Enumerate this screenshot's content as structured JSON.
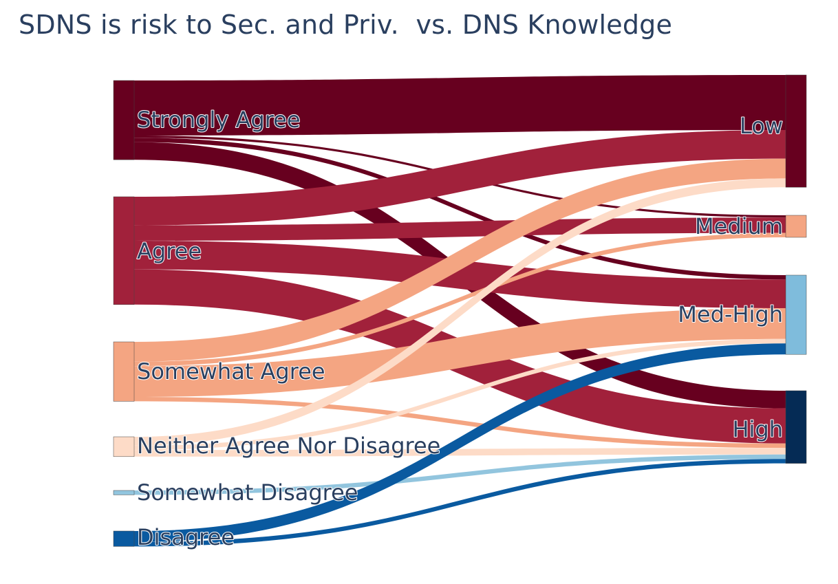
{
  "chart_data": {
    "type": "sankey",
    "title": "SDNS is risk to Sec. and Priv.  vs. DNS Knowledge",
    "sources": [
      {
        "id": "strongly_agree",
        "label": "Strongly Agree",
        "color": "#67001f"
      },
      {
        "id": "agree",
        "label": "Agree",
        "color": "#a1213b"
      },
      {
        "id": "somewhat_agree",
        "label": "Somewhat Agree",
        "color": "#f4a582"
      },
      {
        "id": "neither",
        "label": "Neither Agree Nor Disagree",
        "color": "#fddbc7"
      },
      {
        "id": "somewhat_disagree",
        "label": "Somewhat Disagree",
        "color": "#92c5de"
      },
      {
        "id": "disagree",
        "label": "Disagree",
        "color": "#0a5aa0"
      }
    ],
    "targets": [
      {
        "id": "low",
        "label": "Low",
        "color": "#67001f"
      },
      {
        "id": "medium",
        "label": "Medium",
        "color": "#f4a582"
      },
      {
        "id": "med_high",
        "label": "Med-High",
        "color": "#7fbcdc"
      },
      {
        "id": "high",
        "label": "High",
        "color": "#052b55"
      }
    ],
    "links": [
      {
        "source": "strongly_agree",
        "target": "low",
        "value": 25
      },
      {
        "source": "strongly_agree",
        "target": "medium",
        "value": 1
      },
      {
        "source": "strongly_agree",
        "target": "med_high",
        "value": 2
      },
      {
        "source": "strongly_agree",
        "target": "high",
        "value": 8
      },
      {
        "source": "agree",
        "target": "low",
        "value": 13
      },
      {
        "source": "agree",
        "target": "medium",
        "value": 7
      },
      {
        "source": "agree",
        "target": "med_high",
        "value": 13
      },
      {
        "source": "agree",
        "target": "high",
        "value": 16
      },
      {
        "source": "somewhat_agree",
        "target": "low",
        "value": 9
      },
      {
        "source": "somewhat_agree",
        "target": "medium",
        "value": 2
      },
      {
        "source": "somewhat_agree",
        "target": "med_high",
        "value": 14
      },
      {
        "source": "somewhat_agree",
        "target": "high",
        "value": 2
      },
      {
        "source": "neither",
        "target": "low",
        "value": 4
      },
      {
        "source": "neither",
        "target": "med_high",
        "value": 2
      },
      {
        "source": "neither",
        "target": "high",
        "value": 3
      },
      {
        "source": "somewhat_disagree",
        "target": "high",
        "value": 2
      },
      {
        "source": "disagree",
        "target": "med_high",
        "value": 5
      },
      {
        "source": "disagree",
        "target": "high",
        "value": 2
      }
    ]
  }
}
